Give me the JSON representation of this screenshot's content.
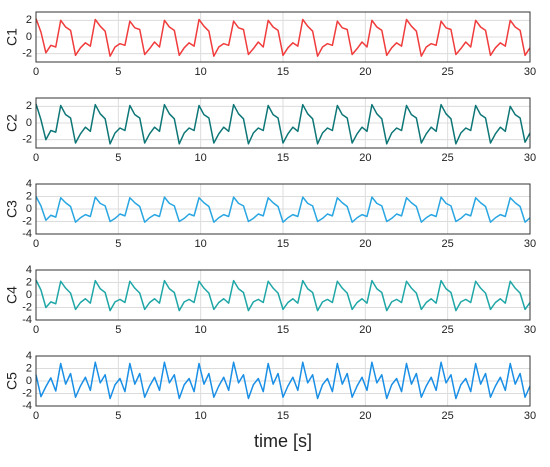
{
  "chart_data": [
    {
      "type": "line",
      "ylabel": "C1",
      "color": "#f03c3c",
      "xlim": [
        0,
        30
      ],
      "xticks": [
        0,
        5,
        10,
        15,
        20,
        25,
        30
      ],
      "ylim": [
        -3,
        3
      ],
      "yticks": [
        -2,
        0,
        2
      ],
      "grid": true,
      "x": [
        0,
        0.3,
        0.6,
        0.9,
        1.2,
        1.5,
        1.8,
        2.1,
        2.4,
        2.7,
        3,
        3.3,
        3.6,
        3.9,
        4.2,
        4.5,
        4.8,
        5.1,
        5.4,
        5.7,
        6,
        6.3,
        6.6,
        6.9,
        7.2,
        7.5,
        7.8,
        8.1,
        8.4,
        8.7,
        9,
        9.3,
        9.6,
        9.9,
        10.2,
        10.5,
        10.8,
        11.1,
        11.4,
        11.7,
        12,
        12.3,
        12.6,
        12.9,
        13.2,
        13.5,
        13.8,
        14.1,
        14.4,
        14.7,
        15,
        15.3,
        15.6,
        15.9,
        16.2,
        16.5,
        16.8,
        17.1,
        17.4,
        17.7,
        18,
        18.3,
        18.6,
        18.9,
        19.2,
        19.5,
        19.8,
        20.1,
        20.4,
        20.7,
        21,
        21.3,
        21.6,
        21.9,
        22.2,
        22.5,
        22.8,
        23.1,
        23.4,
        23.7,
        24,
        24.3,
        24.6,
        24.9,
        25.2,
        25.5,
        25.8,
        26.1,
        26.4,
        26.7,
        27,
        27.3,
        27.6,
        27.9,
        28.2,
        28.5,
        28.8,
        29.1,
        29.4,
        29.7,
        30
      ],
      "values": [
        2.2,
        0.6,
        -1.9,
        -1.0,
        -1.2,
        2.0,
        1.2,
        0.8,
        -2.2,
        -1.3,
        -0.7,
        -1.1,
        2.1,
        1.3,
        0.7,
        -2.3,
        -1.2,
        -0.8,
        -1.0,
        1.9,
        1.1,
        0.9,
        -2.1,
        -1.4,
        -0.6,
        -1.2,
        2.0,
        1.2,
        0.8,
        -2.2,
        -1.3,
        -0.7,
        -1.1,
        2.1,
        1.3,
        0.7,
        -2.3,
        -1.2,
        -0.8,
        -1.0,
        1.9,
        1.1,
        0.9,
        -2.1,
        -1.4,
        -0.6,
        -1.2,
        2.0,
        1.2,
        0.8,
        -2.2,
        -1.3,
        -0.7,
        -1.1,
        2.1,
        1.3,
        0.7,
        -2.3,
        -1.2,
        -0.8,
        -1.0,
        1.9,
        1.1,
        0.9,
        -2.1,
        -1.4,
        -0.6,
        -1.2,
        2.0,
        1.2,
        0.8,
        -2.2,
        -1.3,
        -0.7,
        -1.1,
        2.1,
        1.3,
        0.7,
        -2.3,
        -1.2,
        -0.8,
        -1.0,
        1.9,
        1.1,
        0.9,
        -2.1,
        -1.4,
        -0.6,
        -1.2,
        2.0,
        1.2,
        0.8,
        -2.2,
        -1.3,
        -0.7,
        -1.1,
        2.0,
        1.2,
        0.8,
        -2.2,
        -1.3
      ]
    },
    {
      "type": "line",
      "ylabel": "C2",
      "color": "#0e7676",
      "xlim": [
        0,
        30
      ],
      "xticks": [
        0,
        5,
        10,
        15,
        20,
        25,
        30
      ],
      "ylim": [
        -3,
        3
      ],
      "yticks": [
        -2,
        0,
        2
      ],
      "grid": true,
      "x": [
        0,
        0.3,
        0.6,
        0.9,
        1.2,
        1.5,
        1.8,
        2.1,
        2.4,
        2.7,
        3,
        3.3,
        3.6,
        3.9,
        4.2,
        4.5,
        4.8,
        5.1,
        5.4,
        5.7,
        6,
        6.3,
        6.6,
        6.9,
        7.2,
        7.5,
        7.8,
        8.1,
        8.4,
        8.7,
        9,
        9.3,
        9.6,
        9.9,
        10.2,
        10.5,
        10.8,
        11.1,
        11.4,
        11.7,
        12,
        12.3,
        12.6,
        12.9,
        13.2,
        13.5,
        13.8,
        14.1,
        14.4,
        14.7,
        15,
        15.3,
        15.6,
        15.9,
        16.2,
        16.5,
        16.8,
        17.1,
        17.4,
        17.7,
        18,
        18.3,
        18.6,
        18.9,
        19.2,
        19.5,
        19.8,
        20.1,
        20.4,
        20.7,
        21,
        21.3,
        21.6,
        21.9,
        22.2,
        22.5,
        22.8,
        23.1,
        23.4,
        23.7,
        24,
        24.3,
        24.6,
        24.9,
        25.2,
        25.5,
        25.8,
        26.1,
        26.4,
        26.7,
        27,
        27.3,
        27.6,
        27.9,
        28.2,
        28.5,
        28.8,
        29.1,
        29.4,
        29.7,
        30
      ],
      "values": [
        2.3,
        0.4,
        -2.0,
        -0.9,
        -1.1,
        2.1,
        1.0,
        0.6,
        -2.4,
        -1.3,
        -0.5,
        -1.0,
        2.2,
        1.1,
        0.5,
        -2.5,
        -1.2,
        -0.6,
        -0.9,
        2.1,
        1.0,
        0.6,
        -2.4,
        -1.3,
        -0.5,
        -1.0,
        2.2,
        1.1,
        0.5,
        -2.5,
        -1.2,
        -0.6,
        -0.9,
        2.1,
        1.0,
        0.6,
        -2.4,
        -1.3,
        -0.5,
        -1.0,
        2.2,
        1.1,
        0.5,
        -2.5,
        -1.2,
        -0.6,
        -0.9,
        2.1,
        1.0,
        0.6,
        -2.4,
        -1.3,
        -0.5,
        -1.0,
        2.2,
        1.1,
        0.5,
        -2.5,
        -1.2,
        -0.6,
        -0.9,
        2.1,
        1.0,
        0.6,
        -2.4,
        -1.3,
        -0.5,
        -1.0,
        2.2,
        1.1,
        0.5,
        -2.5,
        -1.2,
        -0.6,
        -0.9,
        2.1,
        1.0,
        0.6,
        -2.4,
        -1.3,
        -0.5,
        -1.0,
        2.2,
        1.1,
        0.5,
        -2.5,
        -1.2,
        -0.6,
        -0.9,
        2.1,
        1.0,
        0.6,
        -2.4,
        -1.3,
        -0.5,
        -1.0,
        2.0,
        1.0,
        0.6,
        -2.3,
        -1.2
      ]
    },
    {
      "type": "line",
      "ylabel": "C3",
      "color": "#29a6e2",
      "xlim": [
        0,
        30
      ],
      "xticks": [
        0,
        5,
        10,
        15,
        20,
        25,
        30
      ],
      "ylim": [
        -4,
        4
      ],
      "yticks": [
        -4,
        -2,
        0,
        2,
        4
      ],
      "grid": true,
      "x": [
        0,
        0.3,
        0.6,
        0.9,
        1.2,
        1.5,
        1.8,
        2.1,
        2.4,
        2.7,
        3,
        3.3,
        3.6,
        3.9,
        4.2,
        4.5,
        4.8,
        5.1,
        5.4,
        5.7,
        6,
        6.3,
        6.6,
        6.9,
        7.2,
        7.5,
        7.8,
        8.1,
        8.4,
        8.7,
        9,
        9.3,
        9.6,
        9.9,
        10.2,
        10.5,
        10.8,
        11.1,
        11.4,
        11.7,
        12,
        12.3,
        12.6,
        12.9,
        13.2,
        13.5,
        13.8,
        14.1,
        14.4,
        14.7,
        15,
        15.3,
        15.6,
        15.9,
        16.2,
        16.5,
        16.8,
        17.1,
        17.4,
        17.7,
        18,
        18.3,
        18.6,
        18.9,
        19.2,
        19.5,
        19.8,
        20.1,
        20.4,
        20.7,
        21,
        21.3,
        21.6,
        21.9,
        22.2,
        22.5,
        22.8,
        23.1,
        23.4,
        23.7,
        24,
        24.3,
        24.6,
        24.9,
        25.2,
        25.5,
        25.8,
        26.1,
        26.4,
        26.7,
        27,
        27.3,
        27.6,
        27.9,
        28.2,
        28.5,
        28.8,
        29.1,
        29.4,
        29.7,
        30
      ],
      "values": [
        2.0,
        0.5,
        -1.8,
        -1.0,
        -1.3,
        1.8,
        1.0,
        0.4,
        -2.1,
        -1.4,
        -0.9,
        -1.2,
        1.9,
        0.9,
        0.5,
        -2.0,
        -1.5,
        -0.8,
        -1.1,
        1.8,
        1.0,
        0.4,
        -2.1,
        -1.4,
        -0.9,
        -1.2,
        1.9,
        0.9,
        0.5,
        -2.0,
        -1.5,
        -0.8,
        -1.1,
        1.8,
        1.0,
        0.4,
        -2.1,
        -1.4,
        -0.9,
        -1.2,
        1.9,
        0.9,
        0.5,
        -2.0,
        -1.5,
        -0.8,
        -1.1,
        1.8,
        1.0,
        0.4,
        -2.1,
        -1.4,
        -0.9,
        -1.2,
        1.9,
        0.9,
        0.5,
        -2.0,
        -1.5,
        -0.8,
        -1.1,
        1.8,
        1.0,
        0.4,
        -2.1,
        -1.4,
        -0.9,
        -1.2,
        1.9,
        0.9,
        0.5,
        -2.0,
        -1.5,
        -0.8,
        -1.1,
        1.8,
        1.0,
        0.4,
        -2.1,
        -1.4,
        -0.9,
        -1.2,
        1.9,
        0.9,
        0.5,
        -2.0,
        -1.5,
        -0.8,
        -1.1,
        1.8,
        1.0,
        0.4,
        -2.1,
        -1.4,
        -0.9,
        -1.2,
        1.8,
        1.0,
        0.4,
        -2.1,
        -1.4
      ]
    },
    {
      "type": "line",
      "ylabel": "C4",
      "color": "#1fa6a6",
      "xlim": [
        0,
        30
      ],
      "xticks": [
        0,
        5,
        10,
        15,
        20,
        25,
        30
      ],
      "ylim": [
        -4,
        4
      ],
      "yticks": [
        -4,
        -2,
        0,
        2,
        4
      ],
      "grid": true,
      "x": [
        0,
        0.3,
        0.6,
        0.9,
        1.2,
        1.5,
        1.8,
        2.1,
        2.4,
        2.7,
        3,
        3.3,
        3.6,
        3.9,
        4.2,
        4.5,
        4.8,
        5.1,
        5.4,
        5.7,
        6,
        6.3,
        6.6,
        6.9,
        7.2,
        7.5,
        7.8,
        8.1,
        8.4,
        8.7,
        9,
        9.3,
        9.6,
        9.9,
        10.2,
        10.5,
        10.8,
        11.1,
        11.4,
        11.7,
        12,
        12.3,
        12.6,
        12.9,
        13.2,
        13.5,
        13.8,
        14.1,
        14.4,
        14.7,
        15,
        15.3,
        15.6,
        15.9,
        16.2,
        16.5,
        16.8,
        17.1,
        17.4,
        17.7,
        18,
        18.3,
        18.6,
        18.9,
        19.2,
        19.5,
        19.8,
        20.1,
        20.4,
        20.7,
        21,
        21.3,
        21.6,
        21.9,
        22.2,
        22.5,
        22.8,
        23.1,
        23.4,
        23.7,
        24,
        24.3,
        24.6,
        24.9,
        25.2,
        25.5,
        25.8,
        26.1,
        26.4,
        26.7,
        27,
        27.3,
        27.6,
        27.9,
        28.2,
        28.5,
        28.8,
        29.1,
        29.4,
        29.7,
        30
      ],
      "values": [
        2.4,
        0.8,
        -2.0,
        -1.1,
        -1.4,
        2.2,
        1.1,
        0.3,
        -2.3,
        -1.2,
        -0.6,
        -1.3,
        2.3,
        1.0,
        0.4,
        -2.5,
        -1.1,
        -0.7,
        -1.2,
        2.2,
        1.1,
        0.3,
        -2.3,
        -1.2,
        -0.6,
        -1.3,
        2.3,
        1.0,
        0.4,
        -2.5,
        -1.1,
        -0.7,
        -1.2,
        2.2,
        1.1,
        0.3,
        -2.3,
        -1.2,
        -0.6,
        -1.3,
        2.3,
        1.0,
        0.4,
        -2.5,
        -1.1,
        -0.7,
        -1.2,
        2.2,
        1.1,
        0.3,
        -2.3,
        -1.2,
        -0.6,
        -1.3,
        2.3,
        1.0,
        0.4,
        -2.5,
        -1.1,
        -0.7,
        -1.2,
        2.2,
        1.1,
        0.3,
        -2.3,
        -1.2,
        -0.6,
        -1.3,
        2.3,
        1.0,
        0.4,
        -2.5,
        -1.1,
        -0.7,
        -1.2,
        2.2,
        1.1,
        0.3,
        -2.3,
        -1.2,
        -0.6,
        -1.3,
        2.3,
        1.0,
        0.4,
        -2.5,
        -1.1,
        -0.7,
        -1.2,
        2.2,
        1.1,
        0.3,
        -2.3,
        -1.2,
        -0.6,
        -1.3,
        2.2,
        1.1,
        0.3,
        -2.3,
        -1.2
      ]
    },
    {
      "type": "line",
      "ylabel": "C5",
      "xlabel": "time [s]",
      "color": "#1a8fe6",
      "xlim": [
        0,
        30
      ],
      "xticks": [
        0,
        5,
        10,
        15,
        20,
        25,
        30
      ],
      "ylim": [
        -4,
        4
      ],
      "yticks": [
        -4,
        -2,
        0,
        2,
        4
      ],
      "grid": true,
      "x": [
        0,
        0.3,
        0.6,
        0.9,
        1.2,
        1.5,
        1.8,
        2.1,
        2.4,
        2.7,
        3,
        3.3,
        3.6,
        3.9,
        4.2,
        4.5,
        4.8,
        5.1,
        5.4,
        5.7,
        6,
        6.3,
        6.6,
        6.9,
        7.2,
        7.5,
        7.8,
        8.1,
        8.4,
        8.7,
        9,
        9.3,
        9.6,
        9.9,
        10.2,
        10.5,
        10.8,
        11.1,
        11.4,
        11.7,
        12,
        12.3,
        12.6,
        12.9,
        13.2,
        13.5,
        13.8,
        14.1,
        14.4,
        14.7,
        15,
        15.3,
        15.6,
        15.9,
        16.2,
        16.5,
        16.8,
        17.1,
        17.4,
        17.7,
        18,
        18.3,
        18.6,
        18.9,
        19.2,
        19.5,
        19.8,
        20.1,
        20.4,
        20.7,
        21,
        21.3,
        21.6,
        21.9,
        22.2,
        22.5,
        22.8,
        23.1,
        23.4,
        23.7,
        24,
        24.3,
        24.6,
        24.9,
        25.2,
        25.5,
        25.8,
        26.1,
        26.4,
        26.7,
        27,
        27.3,
        27.6,
        27.9,
        28.2,
        28.5,
        28.8,
        29.1,
        29.4,
        29.7,
        30
      ],
      "values": [
        1.0,
        -2.5,
        -0.9,
        0.5,
        -1.6,
        2.8,
        -0.5,
        1.2,
        -2.6,
        -0.8,
        0.6,
        -1.5,
        3.0,
        -0.3,
        1.0,
        -2.8,
        -0.6,
        0.4,
        -1.7,
        2.8,
        -0.5,
        1.2,
        -2.6,
        -0.8,
        0.6,
        -1.5,
        3.0,
        -0.3,
        1.0,
        -2.8,
        -0.6,
        0.4,
        -1.7,
        2.8,
        -0.5,
        1.2,
        -2.6,
        -0.8,
        0.6,
        -1.5,
        3.0,
        -0.3,
        1.0,
        -2.8,
        -0.6,
        0.4,
        -1.7,
        2.8,
        -0.5,
        1.2,
        -2.6,
        -0.8,
        0.6,
        -1.5,
        3.0,
        -0.3,
        1.0,
        -2.8,
        -0.6,
        0.4,
        -1.7,
        2.8,
        -0.5,
        1.2,
        -2.6,
        -0.8,
        0.6,
        -1.5,
        3.0,
        -0.3,
        1.0,
        -2.8,
        -0.6,
        0.4,
        -1.7,
        2.8,
        -0.5,
        1.2,
        -2.6,
        -0.8,
        0.6,
        -1.5,
        3.0,
        -0.3,
        1.0,
        -2.8,
        -0.6,
        0.4,
        -1.7,
        2.8,
        -0.5,
        1.2,
        -2.6,
        -0.8,
        0.6,
        -1.5,
        2.8,
        -0.5,
        1.2,
        -2.6,
        -0.8
      ]
    }
  ]
}
